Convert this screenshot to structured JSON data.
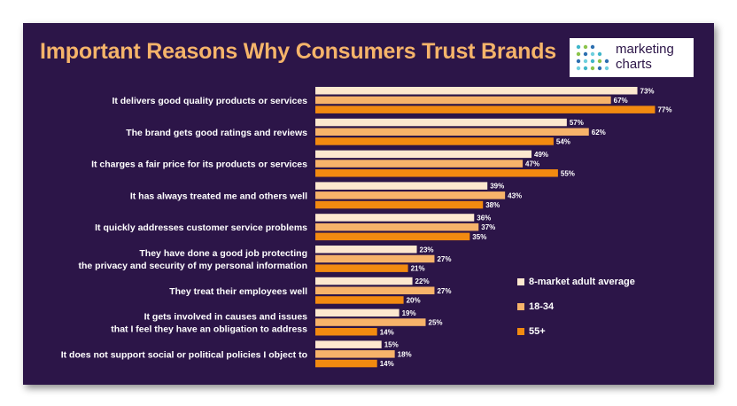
{
  "logo": {
    "line1": "marketing",
    "line2": "charts"
  },
  "colors": {
    "background": "#2c1548",
    "title": "#f5b46a",
    "series": [
      "#fde8cf",
      "#f7b36a",
      "#f28a10"
    ]
  },
  "chart_data": {
    "type": "bar",
    "orientation": "horizontal",
    "title": "Important Reasons Why Consumers Trust Brands",
    "xlim": [
      0,
      100
    ],
    "grid": false,
    "legend_position": "right",
    "categories": [
      [
        "It delivers good quality products or services"
      ],
      [
        "The brand gets good ratings and reviews"
      ],
      [
        "It charges a fair price for its products or services"
      ],
      [
        "It has always treated me and others well"
      ],
      [
        "It quickly addresses customer service problems"
      ],
      [
        "They have done a good job protecting",
        "the privacy and security of my personal information"
      ],
      [
        "They treat their employees well"
      ],
      [
        "It gets involved in causes and issues",
        "that I feel they have an obligation to address"
      ],
      [
        "It does not support social or political policies I object to"
      ]
    ],
    "series": [
      {
        "name": "8-market adult average",
        "color": "#fde8cf",
        "values": [
          73,
          57,
          49,
          39,
          36,
          23,
          22,
          19,
          15
        ]
      },
      {
        "name": "18-34",
        "color": "#f7b36a",
        "values": [
          67,
          62,
          47,
          43,
          37,
          27,
          27,
          25,
          18
        ]
      },
      {
        "name": "55+",
        "color": "#f28a10",
        "values": [
          77,
          54,
          55,
          38,
          35,
          21,
          20,
          14,
          14
        ]
      }
    ],
    "value_suffix": "%"
  }
}
